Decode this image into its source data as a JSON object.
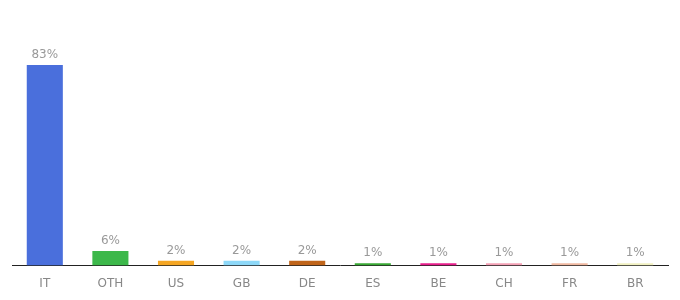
{
  "chart_data": {
    "type": "bar",
    "categories": [
      "IT",
      "OTH",
      "US",
      "GB",
      "DE",
      "ES",
      "BE",
      "CH",
      "FR",
      "BR"
    ],
    "values": [
      83,
      6,
      2,
      2,
      2,
      1,
      1,
      1,
      1,
      1
    ],
    "value_labels": [
      "83%",
      "6%",
      "2%",
      "2%",
      "2%",
      "1%",
      "1%",
      "1%",
      "1%",
      "1%"
    ],
    "colors": [
      "#4a6fdc",
      "#3cb84a",
      "#f5a623",
      "#8dd8f8",
      "#c0651a",
      "#3aaa35",
      "#e91e8c",
      "#f4a0b5",
      "#f0b8a0",
      "#f0f0c0"
    ],
    "ylim": [
      0,
      100
    ],
    "grid": false,
    "data_labels": true,
    "tick_labels": "x"
  }
}
